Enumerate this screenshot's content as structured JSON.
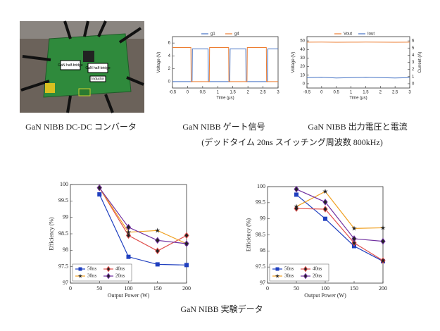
{
  "photo": {
    "labels": [
      "GaN half-bridge",
      "GaN half-bridge",
      "Inductor"
    ]
  },
  "captions": [
    "GaN NIBB DC-DC コンバータ",
    "GaN NIBB ゲート信号",
    "(デッドタイム 20ns スイッチング周波数 800kHz)",
    "GaN NIBB 出力電圧と電流",
    "GaN NIBB 実験データ"
  ],
  "chart_data": [
    {
      "type": "line",
      "xlabel": "Time (μs)",
      "ylabel": "Voltage (V)",
      "x": [
        -0.5,
        0.11,
        0.12,
        0.15,
        0.16,
        0.68,
        0.69,
        0.72,
        0.73,
        1.36,
        1.37,
        1.4,
        1.41,
        1.93,
        1.94,
        1.97,
        1.98,
        2.61,
        2.62,
        2.65,
        2.66,
        3.0
      ],
      "series": [
        {
          "name": "g1",
          "color": "#4472c4",
          "values": [
            0,
            0,
            0,
            0,
            5.1,
            5.1,
            0,
            0,
            0,
            0,
            0,
            0,
            5.1,
            5.1,
            0,
            0,
            0,
            0,
            0,
            0,
            5.1,
            5.1
          ]
        },
        {
          "name": "g4",
          "color": "#ed7d31",
          "values": [
            5.3,
            5.3,
            0,
            0,
            0,
            0,
            0,
            0,
            5.3,
            5.3,
            0,
            0,
            0,
            0,
            0,
            0,
            5.3,
            5.3,
            0,
            0,
            0,
            0
          ]
        }
      ],
      "xlim": [
        -0.5,
        3
      ],
      "xticks": [
        -0.5,
        0,
        0.5,
        1,
        1.5,
        2,
        2.5,
        3
      ],
      "ylim": [
        -1,
        7
      ],
      "yticks": [
        0,
        2,
        4,
        6
      ],
      "legend": "upper center",
      "grid": false
    },
    {
      "type": "line",
      "xlabel": "Time (μs)",
      "ylabel": "Voltage (V)",
      "y2label": "Current (A)",
      "x": [
        -0.5,
        0,
        0.5,
        1,
        1.5,
        2,
        2.5,
        3
      ],
      "series": [
        {
          "name": "Vout",
          "color": "#ed7d31",
          "values": [
            48.5,
            48.6,
            48.4,
            48.5,
            48.6,
            48.5,
            48.4,
            48.5
          ]
        },
        {
          "name": "Iout",
          "color": "#4472c4",
          "axis": "y2",
          "values": [
            0.85,
            0.9,
            0.8,
            0.85,
            0.9,
            0.85,
            0.8,
            0.85
          ]
        }
      ],
      "xlim": [
        -0.5,
        3
      ],
      "xticks": [
        -0.5,
        0,
        0.5,
        1,
        1.5,
        2,
        2.5,
        3
      ],
      "ylim": [
        -5,
        55
      ],
      "yticks": [
        0,
        10,
        20,
        30,
        40,
        50
      ],
      "y2lim": [
        -0.6,
        6.6
      ],
      "y2ticks": [
        0,
        1,
        2,
        3,
        4,
        5,
        6
      ],
      "legend": "upper center",
      "grid": false
    },
    {
      "type": "line",
      "xlabel": "Output Power (W)",
      "ylabel": "Efficiency (%)",
      "x": [
        50,
        100,
        150,
        200
      ],
      "series": [
        {
          "name": "50ns",
          "color": "#1f3fbf",
          "marker": "square",
          "values": [
            99.7,
            97.8,
            97.57,
            97.55
          ]
        },
        {
          "name": "40ns",
          "color": "#e0504d",
          "marker": "diamond",
          "values": [
            99.9,
            98.45,
            97.98,
            98.45
          ]
        },
        {
          "name": "30ns",
          "color": "#f0a020",
          "marker": "star",
          "values": [
            99.9,
            98.55,
            98.6,
            98.2
          ]
        },
        {
          "name": "20ns",
          "color": "#7030a0",
          "marker": "diamond",
          "values": [
            99.9,
            98.7,
            98.3,
            98.2
          ]
        }
      ],
      "xlim": [
        0,
        200
      ],
      "xticks": [
        0,
        50,
        100,
        150,
        200
      ],
      "ylim": [
        97,
        100
      ],
      "yticks": [
        97,
        97.5,
        98,
        98.5,
        99,
        99.5,
        100
      ],
      "legend": "lower left",
      "grid": false
    },
    {
      "type": "line",
      "xlabel": "Output Power (W)",
      "ylabel": "Efficiency (%)",
      "x": [
        50,
        100,
        150,
        200
      ],
      "series": [
        {
          "name": "50ns",
          "color": "#1f3fbf",
          "marker": "square",
          "values": [
            99.75,
            99.0,
            98.15,
            97.68
          ]
        },
        {
          "name": "40ns",
          "color": "#e0504d",
          "marker": "diamond",
          "values": [
            99.32,
            99.3,
            98.25,
            97.7
          ]
        },
        {
          "name": "30ns",
          "color": "#f0a020",
          "marker": "star",
          "values": [
            99.38,
            99.85,
            98.7,
            98.72
          ]
        },
        {
          "name": "20ns",
          "color": "#7030a0",
          "marker": "diamond",
          "values": [
            99.92,
            99.52,
            98.38,
            98.3
          ]
        }
      ],
      "xlim": [
        0,
        200
      ],
      "xticks": [
        0,
        50,
        100,
        150,
        200
      ],
      "ylim": [
        97,
        100
      ],
      "yticks": [
        97,
        97.5,
        98,
        98.5,
        99,
        99.5,
        100
      ],
      "legend": "lower left",
      "grid": false
    }
  ]
}
